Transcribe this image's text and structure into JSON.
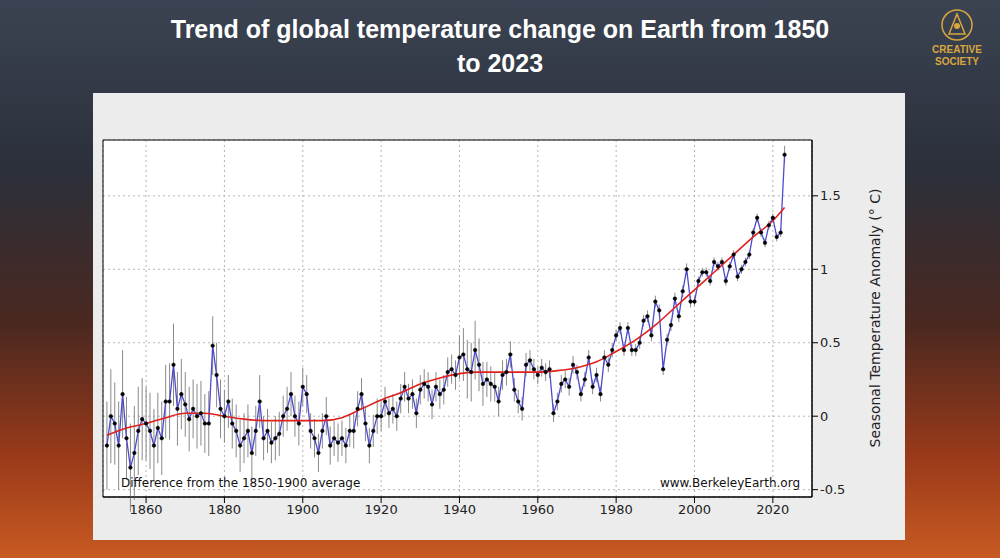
{
  "chart_data": {
    "type": "line",
    "title": "Trend of global temperature change on Earth from 1850 to 2023",
    "y_label": "Seasonal Temperature Anomaly (° C)",
    "annotations": [
      "Difference from the 1850-1900 average",
      "www.BerkeleyEarth.org"
    ],
    "logo": "CREATIVE SOCIETY",
    "x": [
      1850,
      1851,
      1852,
      1853,
      1854,
      1855,
      1856,
      1857,
      1858,
      1859,
      1860,
      1861,
      1862,
      1863,
      1864,
      1865,
      1866,
      1867,
      1868,
      1869,
      1870,
      1871,
      1872,
      1873,
      1874,
      1875,
      1876,
      1877,
      1878,
      1879,
      1880,
      1881,
      1882,
      1883,
      1884,
      1885,
      1886,
      1887,
      1888,
      1889,
      1890,
      1891,
      1892,
      1893,
      1894,
      1895,
      1896,
      1897,
      1898,
      1899,
      1900,
      1901,
      1902,
      1903,
      1904,
      1905,
      1906,
      1907,
      1908,
      1909,
      1910,
      1911,
      1912,
      1913,
      1914,
      1915,
      1916,
      1917,
      1918,
      1919,
      1920,
      1921,
      1922,
      1923,
      1924,
      1925,
      1926,
      1927,
      1928,
      1929,
      1930,
      1931,
      1932,
      1933,
      1934,
      1935,
      1936,
      1937,
      1938,
      1939,
      1940,
      1941,
      1942,
      1943,
      1944,
      1945,
      1946,
      1947,
      1948,
      1949,
      1950,
      1951,
      1952,
      1953,
      1954,
      1955,
      1956,
      1957,
      1958,
      1959,
      1960,
      1961,
      1962,
      1963,
      1964,
      1965,
      1966,
      1967,
      1968,
      1969,
      1970,
      1971,
      1972,
      1973,
      1974,
      1975,
      1976,
      1977,
      1978,
      1979,
      1980,
      1981,
      1982,
      1983,
      1984,
      1985,
      1986,
      1987,
      1988,
      1989,
      1990,
      1991,
      1992,
      1993,
      1994,
      1995,
      1996,
      1997,
      1998,
      1999,
      2000,
      2001,
      2002,
      2003,
      2004,
      2005,
      2006,
      2007,
      2008,
      2009,
      2010,
      2011,
      2012,
      2013,
      2014,
      2015,
      2016,
      2017,
      2018,
      2019,
      2020,
      2021,
      2022,
      2023
    ],
    "series": [
      {
        "color": "#4b4bcc",
        "marker": "circle",
        "line_style": "solid",
        "values": [
          -0.2,
          0.0,
          -0.05,
          -0.2,
          0.15,
          -0.15,
          -0.35,
          -0.25,
          -0.1,
          -0.02,
          -0.05,
          -0.1,
          -0.2,
          -0.08,
          -0.15,
          0.1,
          0.1,
          0.35,
          0.05,
          0.15,
          0.08,
          -0.02,
          0.05,
          0.0,
          0.02,
          -0.05,
          -0.05,
          0.48,
          0.28,
          0.05,
          0.0,
          0.1,
          -0.05,
          -0.1,
          -0.2,
          -0.15,
          -0.1,
          -0.25,
          -0.1,
          0.1,
          -0.15,
          -0.1,
          -0.18,
          -0.15,
          -0.12,
          0.0,
          0.05,
          0.15,
          0.0,
          -0.05,
          0.2,
          0.15,
          -0.1,
          -0.15,
          -0.25,
          -0.1,
          0.0,
          -0.2,
          -0.15,
          -0.18,
          -0.15,
          -0.2,
          -0.1,
          -0.1,
          0.05,
          0.15,
          -0.05,
          -0.2,
          -0.1,
          0.0,
          0.0,
          0.1,
          0.02,
          0.05,
          0.0,
          0.12,
          0.2,
          0.12,
          0.15,
          0.02,
          0.18,
          0.22,
          0.2,
          0.08,
          0.2,
          0.15,
          0.18,
          0.3,
          0.32,
          0.28,
          0.4,
          0.42,
          0.32,
          0.3,
          0.45,
          0.35,
          0.22,
          0.25,
          0.22,
          0.2,
          0.1,
          0.28,
          0.3,
          0.42,
          0.18,
          0.1,
          0.05,
          0.35,
          0.38,
          0.32,
          0.28,
          0.33,
          0.3,
          0.32,
          0.02,
          0.1,
          0.22,
          0.25,
          0.2,
          0.35,
          0.3,
          0.15,
          0.25,
          0.4,
          0.2,
          0.28,
          0.15,
          0.4,
          0.35,
          0.45,
          0.55,
          0.6,
          0.45,
          0.6,
          0.45,
          0.45,
          0.5,
          0.65,
          0.68,
          0.55,
          0.78,
          0.72,
          0.32,
          0.52,
          0.62,
          0.8,
          0.68,
          0.85,
          1.0,
          0.78,
          0.78,
          0.92,
          0.98,
          0.98,
          0.92,
          1.05,
          1.02,
          1.05,
          0.92,
          1.02,
          1.1,
          0.95,
          1.0,
          1.05,
          1.1,
          1.25,
          1.35,
          1.25,
          1.18,
          1.3,
          1.35,
          1.22,
          1.25,
          1.78
        ],
        "errors": [
          0.3,
          0.32,
          0.28,
          0.3,
          0.3,
          0.28,
          0.3,
          0.32,
          0.3,
          0.28,
          0.25,
          0.26,
          0.25,
          0.24,
          0.25,
          0.25,
          0.26,
          0.28,
          0.25,
          0.24,
          0.22,
          0.22,
          0.2,
          0.22,
          0.22,
          0.2,
          0.22,
          0.2,
          0.22,
          0.2,
          0.18,
          0.18,
          0.17,
          0.18,
          0.18,
          0.17,
          0.18,
          0.18,
          0.17,
          0.18,
          0.15,
          0.15,
          0.14,
          0.15,
          0.15,
          0.14,
          0.15,
          0.15,
          0.14,
          0.15,
          0.13,
          0.13,
          0.12,
          0.13,
          0.13,
          0.12,
          0.13,
          0.13,
          0.12,
          0.13,
          0.12,
          0.12,
          0.11,
          0.12,
          0.12,
          0.11,
          0.12,
          0.12,
          0.11,
          0.12,
          0.1,
          0.1,
          0.1,
          0.1,
          0.1,
          0.1,
          0.1,
          0.1,
          0.1,
          0.1,
          0.1,
          0.1,
          0.1,
          0.1,
          0.1,
          0.1,
          0.1,
          0.1,
          0.1,
          0.1,
          0.15,
          0.18,
          0.2,
          0.2,
          0.2,
          0.18,
          0.15,
          0.12,
          0.12,
          0.1,
          0.1,
          0.1,
          0.09,
          0.09,
          0.08,
          0.08,
          0.08,
          0.08,
          0.07,
          0.07,
          0.06,
          0.06,
          0.06,
          0.06,
          0.06,
          0.06,
          0.06,
          0.06,
          0.06,
          0.06,
          0.05,
          0.05,
          0.05,
          0.05,
          0.05,
          0.05,
          0.05,
          0.05,
          0.05,
          0.05,
          0.04,
          0.04,
          0.04,
          0.04,
          0.04,
          0.04,
          0.04,
          0.04,
          0.04,
          0.04,
          0.04,
          0.04,
          0.04,
          0.04,
          0.04,
          0.04,
          0.04,
          0.04,
          0.04,
          0.04,
          0.03,
          0.03,
          0.03,
          0.03,
          0.03,
          0.03,
          0.03,
          0.03,
          0.03,
          0.03,
          0.03,
          0.03,
          0.03,
          0.03,
          0.03,
          0.03,
          0.03,
          0.03,
          0.03,
          0.03,
          0.03,
          0.03,
          0.03,
          0.06
        ]
      },
      {
        "color": "#e0201b",
        "line_style": "solid",
        "x": [
          1850,
          1855,
          1860,
          1865,
          1870,
          1875,
          1880,
          1885,
          1890,
          1895,
          1900,
          1905,
          1910,
          1915,
          1920,
          1925,
          1930,
          1935,
          1940,
          1945,
          1950,
          1955,
          1960,
          1965,
          1970,
          1975,
          1980,
          1985,
          1990,
          1995,
          2000,
          2005,
          2010,
          2015,
          2020,
          2023
        ],
        "values": [
          -0.13,
          -0.08,
          -0.05,
          -0.01,
          0.02,
          0.02,
          0.0,
          -0.02,
          -0.03,
          -0.03,
          -0.03,
          -0.03,
          -0.01,
          0.05,
          0.11,
          0.16,
          0.22,
          0.26,
          0.29,
          0.3,
          0.3,
          0.3,
          0.3,
          0.31,
          0.33,
          0.37,
          0.44,
          0.52,
          0.62,
          0.74,
          0.86,
          0.98,
          1.1,
          1.22,
          1.33,
          1.42
        ]
      }
    ],
    "xlim": [
      1849,
      2030
    ],
    "xticks": [
      1860,
      1880,
      1900,
      1920,
      1940,
      1960,
      1980,
      2000,
      2020
    ],
    "ylim": [
      -0.55,
      1.88
    ],
    "yticks": [
      -0.5,
      0,
      0.5,
      1,
      1.5
    ],
    "grid": true
  }
}
